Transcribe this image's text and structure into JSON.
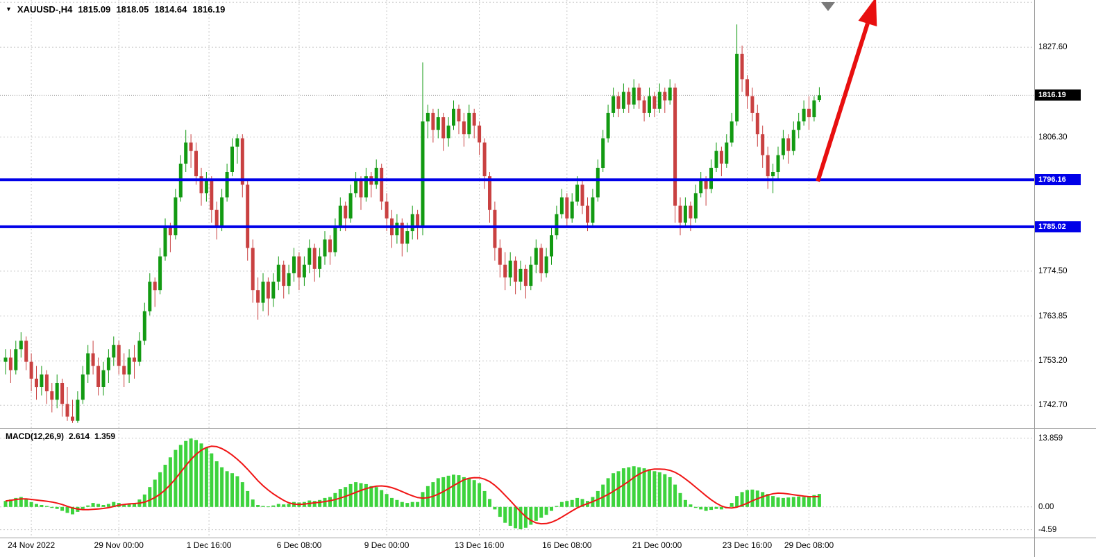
{
  "header": {
    "collapse_icon": "▼",
    "symbol_period": "XAUUSD-,H4",
    "open": "1815.09",
    "high": "1818.05",
    "low": "1814.64",
    "close": "1816.19"
  },
  "macd_panel": {
    "label": "MACD(12,26,9)",
    "macd_value": "2.614",
    "signal_value": "1.359"
  },
  "chart_data": {
    "type": "candlestick",
    "title": "XAUUSD-,H4",
    "grid": true,
    "y_axis": {
      "top_value": 1838.8,
      "bottom_value": 1737.3,
      "labels": [
        {
          "text": "1827.60",
          "value": 1827.6
        },
        {
          "text": "1806.30",
          "value": 1806.3
        },
        {
          "text": "1774.50",
          "value": 1774.5
        },
        {
          "text": "1763.85",
          "value": 1763.85
        },
        {
          "text": "1753.20",
          "value": 1753.2
        },
        {
          "text": "1742.70",
          "value": 1742.7
        }
      ],
      "extra_gridlines": [
        1838.25
      ]
    },
    "current_price": {
      "text": "1816.19",
      "value": 1816.19
    },
    "levels": [
      {
        "text": "1796.16",
        "value": 1796.16
      },
      {
        "text": "1785.02",
        "value": 1785.02
      }
    ],
    "x_axis": {
      "labels": [
        {
          "text": "24 Nov 2022",
          "index": 5
        },
        {
          "text": "29 Nov 00:00",
          "index": 22
        },
        {
          "text": "1 Dec 16:00",
          "index": 39.5
        },
        {
          "text": "6 Dec 08:00",
          "index": 57
        },
        {
          "text": "9 Dec 00:00",
          "index": 74
        },
        {
          "text": "13 Dec 16:00",
          "index": 92
        },
        {
          "text": "16 Dec 08:00",
          "index": 109
        },
        {
          "text": "21 Dec 00:00",
          "index": 126.5
        },
        {
          "text": "23 Dec 16:00",
          "index": 144
        },
        {
          "text": "29 Dec 08:00",
          "index": 156
        }
      ]
    },
    "candles": [
      [
        1753,
        1756,
        1750,
        1754
      ],
      [
        1754,
        1756,
        1748,
        1751
      ],
      [
        1751,
        1758,
        1750,
        1756
      ],
      [
        1756,
        1760,
        1754,
        1758
      ],
      [
        1758,
        1759,
        1751,
        1753
      ],
      [
        1753,
        1755,
        1746,
        1749
      ],
      [
        1749,
        1752,
        1744,
        1747
      ],
      [
        1747,
        1752,
        1745,
        1750
      ],
      [
        1750,
        1751,
        1743,
        1746
      ],
      [
        1746,
        1748,
        1741,
        1744
      ],
      [
        1744,
        1750,
        1742,
        1748
      ],
      [
        1748,
        1749,
        1740,
        1743
      ],
      [
        1743,
        1747,
        1739,
        1740
      ],
      [
        1740,
        1744,
        1738.5,
        1739
      ],
      [
        1739,
        1746,
        1738.5,
        1744
      ],
      [
        1744,
        1752,
        1743,
        1750
      ],
      [
        1750,
        1757,
        1748,
        1755
      ],
      [
        1755,
        1758,
        1750,
        1752
      ],
      [
        1752,
        1754,
        1745,
        1747
      ],
      [
        1747,
        1753,
        1745,
        1751
      ],
      [
        1751,
        1756,
        1748,
        1754
      ],
      [
        1754,
        1759,
        1752,
        1757
      ],
      [
        1757,
        1758,
        1750,
        1752
      ],
      [
        1752,
        1755,
        1747,
        1750
      ],
      [
        1750,
        1756,
        1748,
        1754
      ],
      [
        1754,
        1757,
        1749,
        1753
      ],
      [
        1753,
        1760,
        1752,
        1758
      ],
      [
        1758,
        1767,
        1757,
        1765
      ],
      [
        1765,
        1774,
        1764,
        1772
      ],
      [
        1772,
        1773,
        1766,
        1770
      ],
      [
        1770,
        1780,
        1769,
        1778
      ],
      [
        1778,
        1787,
        1777,
        1785
      ],
      [
        1785,
        1786,
        1779,
        1783
      ],
      [
        1783,
        1794,
        1782,
        1792
      ],
      [
        1792,
        1802,
        1791,
        1800
      ],
      [
        1800,
        1808,
        1798,
        1805
      ],
      [
        1805,
        1807,
        1799,
        1803
      ],
      [
        1803,
        1805,
        1795,
        1797
      ],
      [
        1797,
        1799,
        1790,
        1793
      ],
      [
        1793,
        1798,
        1791,
        1796
      ],
      [
        1796,
        1797,
        1786,
        1789
      ],
      [
        1789,
        1791,
        1782,
        1785
      ],
      [
        1785,
        1794,
        1784,
        1792
      ],
      [
        1792,
        1800,
        1791,
        1798
      ],
      [
        1798,
        1806,
        1797,
        1804
      ],
      [
        1804,
        1807,
        1800,
        1806
      ],
      [
        1806,
        1807,
        1792,
        1795
      ],
      [
        1795,
        1796,
        1777,
        1780
      ],
      [
        1780,
        1782,
        1767,
        1770
      ],
      [
        1770,
        1773,
        1763,
        1767
      ],
      [
        1767,
        1774,
        1765,
        1772
      ],
      [
        1772,
        1773,
        1764,
        1768
      ],
      [
        1768,
        1774,
        1766,
        1772
      ],
      [
        1772,
        1778,
        1770,
        1776
      ],
      [
        1776,
        1777,
        1768,
        1771
      ],
      [
        1771,
        1776,
        1769,
        1774
      ],
      [
        1774,
        1780,
        1772,
        1778
      ],
      [
        1778,
        1779,
        1770,
        1773
      ],
      [
        1773,
        1778,
        1771,
        1776
      ],
      [
        1776,
        1782,
        1774,
        1780
      ],
      [
        1780,
        1781,
        1772,
        1775
      ],
      [
        1775,
        1780,
        1773,
        1778
      ],
      [
        1778,
        1784,
        1776,
        1782
      ],
      [
        1782,
        1783,
        1776,
        1779
      ],
      [
        1779,
        1787,
        1778,
        1785
      ],
      [
        1785,
        1792,
        1784,
        1790
      ],
      [
        1790,
        1791,
        1784,
        1787
      ],
      [
        1787,
        1795,
        1786,
        1793
      ],
      [
        1793,
        1798,
        1792,
        1796
      ],
      [
        1796,
        1797,
        1789,
        1792
      ],
      [
        1792,
        1799,
        1791,
        1797
      ],
      [
        1797,
        1798,
        1792,
        1795
      ],
      [
        1795,
        1801,
        1794,
        1799
      ],
      [
        1799,
        1800,
        1789,
        1791
      ],
      [
        1791,
        1793,
        1784,
        1787
      ],
      [
        1787,
        1789,
        1780,
        1783
      ],
      [
        1783,
        1788,
        1781,
        1786
      ],
      [
        1786,
        1787,
        1778,
        1781
      ],
      [
        1781,
        1786,
        1779,
        1784
      ],
      [
        1784,
        1790,
        1782,
        1788
      ],
      [
        1788,
        1789,
        1782,
        1785
      ],
      [
        1785,
        1824,
        1783,
        1810
      ],
      [
        1810,
        1814,
        1806,
        1812
      ],
      [
        1812,
        1813,
        1805,
        1808
      ],
      [
        1808,
        1813,
        1806,
        1811
      ],
      [
        1811,
        1812,
        1803,
        1806
      ],
      [
        1806,
        1811,
        1804,
        1809
      ],
      [
        1809,
        1815,
        1808,
        1813
      ],
      [
        1813,
        1814,
        1807,
        1810
      ],
      [
        1810,
        1812,
        1804,
        1807
      ],
      [
        1807,
        1814,
        1806,
        1812
      ],
      [
        1812,
        1813,
        1806,
        1809
      ],
      [
        1809,
        1810,
        1802,
        1805
      ],
      [
        1805,
        1806,
        1794,
        1797
      ],
      [
        1797,
        1798,
        1786,
        1789
      ],
      [
        1789,
        1791,
        1777,
        1780
      ],
      [
        1780,
        1782,
        1773,
        1776
      ],
      [
        1776,
        1779,
        1770,
        1773
      ],
      [
        1773,
        1779,
        1771,
        1777
      ],
      [
        1777,
        1778,
        1769,
        1772
      ],
      [
        1772,
        1777,
        1770,
        1775
      ],
      [
        1775,
        1776,
        1768,
        1771
      ],
      [
        1771,
        1778,
        1770,
        1776
      ],
      [
        1776,
        1782,
        1774,
        1780
      ],
      [
        1780,
        1781,
        1772,
        1774
      ],
      [
        1774,
        1780,
        1773,
        1778
      ],
      [
        1778,
        1785,
        1776,
        1783
      ],
      [
        1783,
        1790,
        1782,
        1788
      ],
      [
        1788,
        1794,
        1787,
        1792
      ],
      [
        1792,
        1793,
        1785,
        1787
      ],
      [
        1787,
        1793,
        1786,
        1791
      ],
      [
        1791,
        1797,
        1790,
        1795
      ],
      [
        1795,
        1796,
        1788,
        1790
      ],
      [
        1790,
        1792,
        1784,
        1786
      ],
      [
        1786,
        1794,
        1785,
        1792
      ],
      [
        1792,
        1801,
        1791,
        1799
      ],
      [
        1799,
        1808,
        1798,
        1806
      ],
      [
        1806,
        1814,
        1805,
        1812
      ],
      [
        1812,
        1818,
        1811,
        1816
      ],
      [
        1816,
        1817,
        1811,
        1813
      ],
      [
        1813,
        1819,
        1812,
        1817
      ],
      [
        1817,
        1818,
        1812,
        1814
      ],
      [
        1814,
        1820,
        1813,
        1818
      ],
      [
        1818,
        1819,
        1813,
        1815
      ],
      [
        1815,
        1816,
        1810,
        1812
      ],
      [
        1812,
        1818,
        1811,
        1816
      ],
      [
        1816,
        1817,
        1811,
        1813
      ],
      [
        1813,
        1819,
        1812,
        1817
      ],
      [
        1817,
        1818,
        1812,
        1815
      ],
      [
        1815,
        1820,
        1814,
        1818
      ],
      [
        1818,
        1819,
        1786,
        1790
      ],
      [
        1790,
        1792,
        1783,
        1786
      ],
      [
        1786,
        1792,
        1785,
        1790
      ],
      [
        1790,
        1791,
        1784,
        1787
      ],
      [
        1787,
        1795,
        1786,
        1793
      ],
      [
        1793,
        1798,
        1792,
        1796
      ],
      [
        1796,
        1797,
        1790,
        1794
      ],
      [
        1794,
        1801,
        1793,
        1799
      ],
      [
        1799,
        1805,
        1798,
        1803
      ],
      [
        1803,
        1804,
        1797,
        1800
      ],
      [
        1800,
        1807,
        1799,
        1805
      ],
      [
        1805,
        1812,
        1804,
        1810
      ],
      [
        1810,
        1833,
        1809,
        1826
      ],
      [
        1826,
        1828,
        1817,
        1820
      ],
      [
        1820,
        1821,
        1813,
        1816
      ],
      [
        1816,
        1818,
        1810,
        1812
      ],
      [
        1812,
        1814,
        1804,
        1807
      ],
      [
        1807,
        1809,
        1799,
        1802
      ],
      [
        1802,
        1804,
        1794,
        1797
      ],
      [
        1797,
        1800,
        1793,
        1798
      ],
      [
        1798,
        1804,
        1796,
        1802
      ],
      [
        1802,
        1808,
        1801,
        1806
      ],
      [
        1806,
        1807,
        1800,
        1803
      ],
      [
        1803,
        1810,
        1802,
        1808
      ],
      [
        1808,
        1812,
        1806,
        1810
      ],
      [
        1810,
        1815,
        1809,
        1813
      ],
      [
        1813,
        1816,
        1808,
        1811
      ],
      [
        1811,
        1816,
        1810,
        1815
      ],
      [
        1815.1,
        1818.1,
        1814.6,
        1816.2
      ]
    ],
    "macd": {
      "params": "12,26,9",
      "signal_period": 9,
      "values": [
        1.2,
        1.5,
        1.8,
        2.0,
        1.6,
        1.0,
        0.6,
        0.4,
        0.2,
        -0.2,
        -0.4,
        -0.8,
        -1.2,
        -1.5,
        -1.0,
        -0.4,
        0.3,
        0.8,
        0.6,
        0.4,
        0.6,
        1.0,
        0.8,
        0.5,
        0.6,
        0.8,
        1.5,
        2.5,
        4.0,
        5.5,
        7.0,
        8.5,
        10.0,
        11.5,
        12.5,
        13.3,
        13.8,
        13.5,
        12.8,
        12.0,
        10.8,
        9.2,
        8.0,
        7.2,
        6.8,
        6.2,
        5.0,
        3.2,
        1.5,
        0.4,
        0.2,
        0.1,
        0.3,
        0.6,
        0.5,
        0.6,
        1.0,
        0.9,
        1.0,
        1.3,
        1.2,
        1.4,
        1.8,
        2.0,
        2.8,
        3.6,
        4.0,
        4.6,
        5.0,
        4.8,
        4.6,
        4.2,
        4.0,
        3.4,
        2.6,
        1.8,
        1.4,
        1.0,
        0.8,
        1.0,
        1.0,
        3.0,
        4.2,
        5.0,
        5.8,
        6.0,
        6.3,
        6.5,
        6.4,
        6.0,
        5.8,
        5.4,
        4.8,
        3.2,
        1.6,
        -0.5,
        -2.0,
        -3.2,
        -3.8,
        -4.3,
        -4.5,
        -4.2,
        -3.6,
        -2.8,
        -2.2,
        -1.6,
        -0.8,
        0.2,
        1.0,
        1.2,
        1.4,
        1.8,
        1.6,
        1.2,
        2.0,
        3.2,
        4.5,
        5.8,
        6.8,
        7.2,
        7.8,
        8.0,
        8.2,
        8.0,
        7.8,
        7.6,
        7.2,
        7.0,
        6.6,
        6.0,
        4.5,
        2.8,
        1.4,
        0.5,
        -0.2,
        -0.5,
        -0.8,
        -0.6,
        -0.4,
        -0.5,
        -0.3,
        0.8,
        2.2,
        3.0,
        3.4,
        3.5,
        3.3,
        3.0,
        2.6,
        2.2,
        1.9,
        1.8,
        1.9,
        2.0,
        2.1,
        2.0,
        2.2,
        2.4,
        2.614
      ],
      "axis": {
        "top_value": 15.5,
        "bottom_value": -5.9,
        "labels": [
          {
            "text": "13.859",
            "value": 13.859
          },
          {
            "text": "0.00",
            "value": 0
          },
          {
            "text": "-4.59",
            "value": -4.59
          }
        ]
      }
    },
    "arrow": {
      "from": {
        "index": 157.7,
        "value": 1795.8
      },
      "to": {
        "index": 169,
        "value": 1839.5
      }
    },
    "colors": {
      "bull": "#129a12",
      "bear": "#c94141",
      "macd_bar": "#3dd33d",
      "signal": "#f01515",
      "level": "#0000e8",
      "arrow": "#e80f0f",
      "grid": "#c8c8c8",
      "separator": "#9b9b9b",
      "price_badge_bg": "#000000",
      "level_badge_bg": "#0000e8"
    }
  }
}
